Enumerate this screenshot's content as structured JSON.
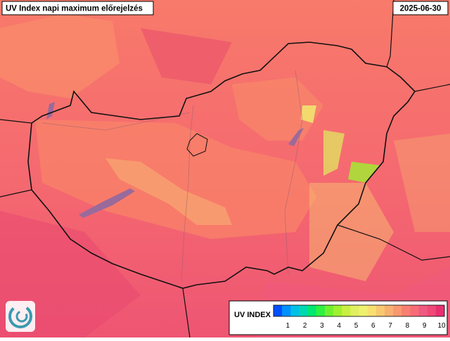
{
  "header": {
    "title": "UV Index napi maximum előrejelzés",
    "date": "2025-06-30"
  },
  "legend": {
    "title": "UV INDEX",
    "ticks": [
      1,
      2,
      3,
      4,
      5,
      6,
      7,
      8,
      9,
      10
    ],
    "colors": [
      "#0050ff",
      "#0090ff",
      "#00c0e8",
      "#00d8b0",
      "#00e870",
      "#30f040",
      "#70f030",
      "#a0f030",
      "#c8f040",
      "#e0f060",
      "#f0f070",
      "#f8e070",
      "#f8c870",
      "#f8b070",
      "#f89870",
      "#f88070",
      "#f86c78",
      "#f05a80",
      "#f04878",
      "#e83070"
    ]
  }
}
